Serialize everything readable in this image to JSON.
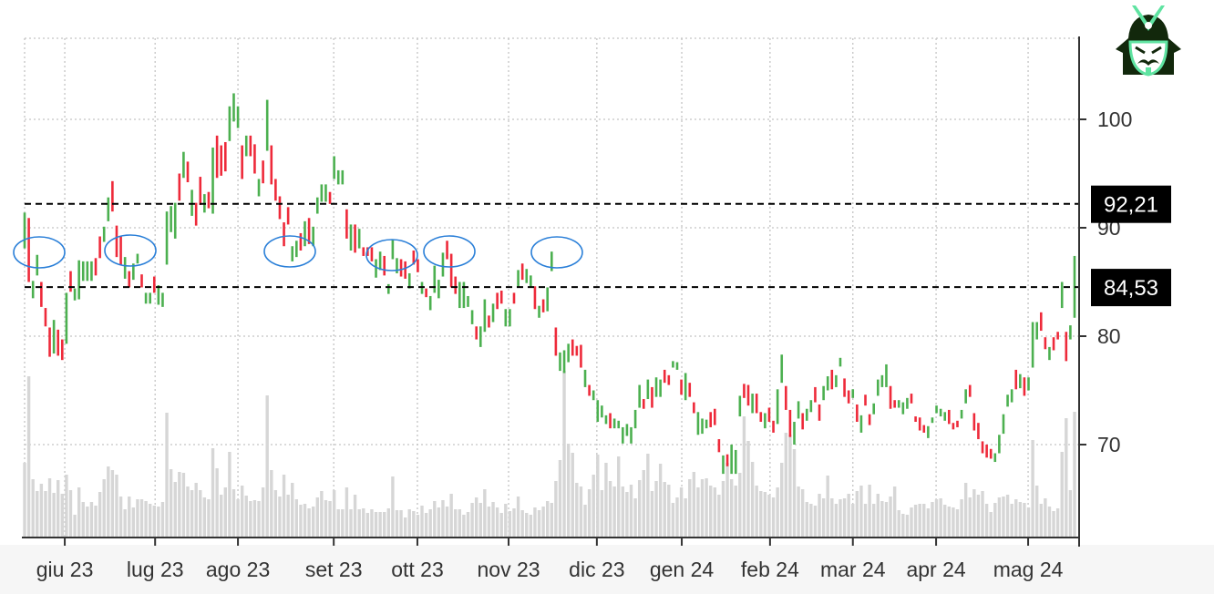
{
  "chart_data": {
    "type": "candlestick",
    "title": "",
    "y_axis": {
      "side": "right",
      "ticks": [
        70,
        80,
        90,
        100
      ],
      "range": [
        61.5,
        107.5
      ]
    },
    "x_axis": {
      "tick_labels": [
        "giu 23",
        "lug 23",
        "ago 23",
        "set 23",
        "ott 23",
        "nov 23",
        "dic 23",
        "gen 24",
        "feb 24",
        "mar 24",
        "apr 24",
        "mag 24"
      ]
    },
    "grid": true,
    "colors": {
      "up": "#4cb050",
      "down": "#ee2a3a",
      "volume": "#d6d6d6",
      "level_line": "#000000",
      "annotation": "#2a7fd8"
    },
    "levels": [
      {
        "value": 92.21,
        "label": "92,21"
      },
      {
        "value": 84.53,
        "label": "84,53"
      }
    ],
    "candles_open_close": [
      [
        88.1,
        91.4
      ],
      [
        90.9,
        85.0
      ],
      [
        83.5,
        85.1
      ],
      [
        85.6,
        87.5
      ],
      [
        85.0,
        82.7
      ],
      [
        82.6,
        80.9
      ],
      [
        80.8,
        78.1
      ],
      [
        78.4,
        81.5
      ],
      [
        80.6,
        78.2
      ],
      [
        79.7,
        77.8
      ],
      [
        79.3,
        84.0
      ],
      [
        86.0,
        84.1
      ],
      [
        83.3,
        84.4
      ],
      [
        83.4,
        87.0
      ],
      [
        85.1,
        86.9
      ],
      [
        85.1,
        86.9
      ],
      [
        85.1,
        86.9
      ],
      [
        87.2,
        85.6
      ],
      [
        89.2,
        87.2
      ],
      [
        88.7,
        90.1
      ],
      [
        90.6,
        92.8
      ],
      [
        94.3,
        91.5
      ],
      [
        90.2,
        87.3
      ],
      [
        89.2,
        86.6
      ],
      [
        85.3,
        87.3
      ],
      [
        86.0,
        84.5
      ],
      [
        85.2,
        86.7
      ],
      [
        86.7,
        87.6
      ],
      [
        85.7,
        84.5
      ],
      [
        83.0,
        84.0
      ],
      [
        83.0,
        84.0
      ],
      [
        85.5,
        84.0
      ],
      [
        82.9,
        84.7
      ],
      [
        82.7,
        84.0
      ],
      [
        86.6,
        91.5
      ],
      [
        89.6,
        92.0
      ],
      [
        89.0,
        92.3
      ],
      [
        95.0,
        92.5
      ],
      [
        94.6,
        97.0
      ],
      [
        96.1,
        94.2
      ],
      [
        91.1,
        93.5
      ],
      [
        92.3,
        90.2
      ],
      [
        94.7,
        92.1
      ],
      [
        91.4,
        93.1
      ],
      [
        93.3,
        91.8
      ],
      [
        91.3,
        97.4
      ],
      [
        98.5,
        94.6
      ],
      [
        97.6,
        94.8
      ],
      [
        97.9,
        95.2
      ],
      [
        98.0,
        101.2
      ],
      [
        99.8,
        102.4
      ],
      [
        99.2,
        101.2
      ],
      [
        97.6,
        94.5
      ],
      [
        96.6,
        98.5
      ],
      [
        98.5,
        96.6
      ],
      [
        97.7,
        95.0
      ],
      [
        92.9,
        94.5
      ],
      [
        96.2,
        94.1
      ],
      [
        97.1,
        101.8
      ],
      [
        97.6,
        94.0
      ],
      [
        94.5,
        92.5
      ],
      [
        92.9,
        90.8
      ],
      [
        90.5,
        88.3
      ],
      [
        91.9,
        90.3
      ],
      [
        86.9,
        88.3
      ],
      [
        87.3,
        88.8
      ],
      [
        89.5,
        87.9
      ],
      [
        88.3,
        90.6
      ],
      [
        90.9,
        88.5
      ],
      [
        88.3,
        90.1
      ],
      [
        91.3,
        92.8
      ],
      [
        92.4,
        94.0
      ],
      [
        92.4,
        94.0
      ],
      [
        93.3,
        92.2
      ],
      [
        94.5,
        96.6
      ],
      [
        94.0,
        95.3
      ],
      [
        94.0,
        95.3
      ],
      [
        91.7,
        89.0
      ],
      [
        87.9,
        90.3
      ],
      [
        90.3,
        87.7
      ],
      [
        88.1,
        89.9
      ],
      [
        88.2,
        87.4
      ],
      [
        88.2,
        87.4
      ],
      [
        88.2,
        86.9
      ],
      [
        85.4,
        87.1
      ],
      [
        86.1,
        87.8
      ],
      [
        87.4,
        85.6
      ],
      [
        83.9,
        84.8
      ],
      [
        87.1,
        88.9
      ],
      [
        85.8,
        87.2
      ],
      [
        87.1,
        85.5
      ],
      [
        86.9,
        85.3
      ],
      [
        84.4,
        85.8
      ],
      [
        87.9,
        86.6
      ],
      [
        87.1,
        85.9
      ],
      [
        83.9,
        85.0
      ],
      [
        84.4,
        83.6
      ],
      [
        82.4,
        83.7
      ],
      [
        84.0,
        86.5
      ],
      [
        83.5,
        85.2
      ],
      [
        85.5,
        87.7
      ],
      [
        88.8,
        87.1
      ],
      [
        87.6,
        84.5
      ],
      [
        85.5,
        83.9
      ],
      [
        82.6,
        85.0
      ],
      [
        82.6,
        85.0
      ],
      [
        82.7,
        83.7
      ],
      [
        81.1,
        82.4
      ],
      [
        80.9,
        79.7
      ],
      [
        79.0,
        80.9
      ],
      [
        80.4,
        83.4
      ],
      [
        81.9,
        80.8
      ],
      [
        81.3,
        83.0
      ],
      [
        84.0,
        82.5
      ],
      [
        84.2,
        83.0
      ],
      [
        80.9,
        82.5
      ],
      [
        80.9,
        82.5
      ],
      [
        84.0,
        83.0
      ],
      [
        84.5,
        86.1
      ],
      [
        86.7,
        85.2
      ],
      [
        84.9,
        86.2
      ],
      [
        84.5,
        85.6
      ],
      [
        84.6,
        82.5
      ],
      [
        81.7,
        82.8
      ],
      [
        83.4,
        82.2
      ],
      [
        82.3,
        84.5
      ],
      [
        86.0,
        87.8
      ],
      [
        80.8,
        78.2
      ],
      [
        76.8,
        78.5
      ],
      [
        76.6,
        78.7
      ],
      [
        77.6,
        79.3
      ],
      [
        79.7,
        78.2
      ],
      [
        79.1,
        78.2
      ],
      [
        79.2,
        77.1
      ],
      [
        75.3,
        76.9
      ],
      [
        75.5,
        74.5
      ],
      [
        74.1,
        75.0
      ],
      [
        72.1,
        74.1
      ],
      [
        72.5,
        73.6
      ],
      [
        71.9,
        72.7
      ],
      [
        72.9,
        71.5
      ],
      [
        71.5,
        72.4
      ],
      [
        71.5,
        72.2
      ],
      [
        70.1,
        71.6
      ],
      [
        70.8,
        71.9
      ],
      [
        70.1,
        71.6
      ],
      [
        71.5,
        73.2
      ],
      [
        73.4,
        75.5
      ],
      [
        74.2,
        73.3
      ],
      [
        74.2,
        76.0
      ],
      [
        75.3,
        73.4
      ],
      [
        74.4,
        76.2
      ],
      [
        74.4,
        76.0
      ],
      [
        76.9,
        75.7
      ],
      [
        76.4,
        75.5
      ],
      [
        77.1,
        77.7
      ],
      [
        76.9,
        77.6
      ],
      [
        76.0,
        74.6
      ],
      [
        74.1,
        76.6
      ],
      [
        75.7,
        74.4
      ],
      [
        73.9,
        72.9
      ],
      [
        70.9,
        73.0
      ],
      [
        71.0,
        72.4
      ],
      [
        71.5,
        72.3
      ],
      [
        73.0,
        71.6
      ],
      [
        73.3,
        71.8
      ],
      [
        70.5,
        69.3
      ],
      [
        67.3,
        69.0
      ],
      [
        69.1,
        68.0
      ],
      [
        67.3,
        70.0
      ],
      [
        67.3,
        69.5
      ],
      [
        72.6,
        74.5
      ],
      [
        75.6,
        74.3
      ],
      [
        75.5,
        73.6
      ],
      [
        72.9,
        74.7
      ],
      [
        74.7,
        72.9
      ],
      [
        73.0,
        72.1
      ],
      [
        71.5,
        72.9
      ],
      [
        73.4,
        72.1
      ],
      [
        72.2,
        71.1
      ],
      [
        71.9,
        75.1
      ],
      [
        75.7,
        78.3
      ],
      [
        75.4,
        73.2
      ],
      [
        73.2,
        70.7
      ],
      [
        70.0,
        72.1
      ],
      [
        72.4,
        74.0
      ],
      [
        72.9,
        71.4
      ],
      [
        72.2,
        73.3
      ],
      [
        73.0,
        74.1
      ],
      [
        75.3,
        73.9
      ],
      [
        73.7,
        72.2
      ],
      [
        74.1,
        75.4
      ],
      [
        75.0,
        76.3
      ],
      [
        76.9,
        75.1
      ],
      [
        75.3,
        76.4
      ],
      [
        77.2,
        78.0
      ],
      [
        76.1,
        74.4
      ],
      [
        75.0,
        73.8
      ],
      [
        74.3,
        75.1
      ],
      [
        73.7,
        72.1
      ],
      [
        71.1,
        72.7
      ],
      [
        74.6,
        73.6
      ],
      [
        72.8,
        71.8
      ],
      [
        72.8,
        73.8
      ],
      [
        74.5,
        76.0
      ],
      [
        75.3,
        76.4
      ],
      [
        75.3,
        77.4
      ],
      [
        75.4,
        73.3
      ],
      [
        74.1,
        73.4
      ],
      [
        73.4,
        74.1
      ],
      [
        72.8,
        73.9
      ],
      [
        73.3,
        74.3
      ],
      [
        74.7,
        73.8
      ],
      [
        72.6,
        72.1
      ],
      [
        72.5,
        71.3
      ],
      [
        71.8,
        71.1
      ],
      [
        70.6,
        71.7
      ],
      [
        72.0,
        72.5
      ],
      [
        72.9,
        73.6
      ],
      [
        72.6,
        73.3
      ],
      [
        72.2,
        73.0
      ],
      [
        73.2,
        71.9
      ],
      [
        72.0,
        71.4
      ],
      [
        72.2,
        71.6
      ],
      [
        72.4,
        73.2
      ],
      [
        73.8,
        75.1
      ],
      [
        75.5,
        74.4
      ],
      [
        72.9,
        71.3
      ],
      [
        72.0,
        70.5
      ],
      [
        70.3,
        69.2
      ],
      [
        70.0,
        68.8
      ],
      [
        69.6,
        68.7
      ],
      [
        68.4,
        69.2
      ],
      [
        69.2,
        70.9
      ],
      [
        71.0,
        72.8
      ],
      [
        73.5,
        74.6
      ],
      [
        73.9,
        75.1
      ],
      [
        76.9,
        75.1
      ],
      [
        75.2,
        76.5
      ],
      [
        76.2,
        74.5
      ],
      [
        75.0,
        76.2
      ],
      [
        77.1,
        81.3
      ],
      [
        79.7,
        81.3
      ],
      [
        82.2,
        80.5
      ],
      [
        79.9,
        78.8
      ],
      [
        77.8,
        79.0
      ],
      [
        79.9,
        78.7
      ],
      [
        80.4,
        79.7
      ],
      [
        82.6,
        85.0
      ],
      [
        80.4,
        77.7
      ],
      [
        79.7,
        81.0
      ],
      [
        81.7,
        87.4
      ]
    ],
    "volume_relative": [
      82,
      177,
      64,
      51,
      59,
      51,
      65,
      49,
      63,
      48,
      69,
      52,
      25,
      55,
      39,
      34,
      39,
      35,
      50,
      64,
      78,
      74,
      69,
      45,
      31,
      45,
      33,
      42,
      42,
      40,
      37,
      35,
      34,
      39,
      137,
      75,
      61,
      72,
      71,
      56,
      52,
      60,
      52,
      44,
      42,
      98,
      76,
      47,
      55,
      94,
      53,
      42,
      57,
      46,
      40,
      41,
      40,
      55,
      156,
      74,
      52,
      45,
      69,
      47,
      60,
      42,
      36,
      37,
      32,
      34,
      44,
      51,
      41,
      40,
      52,
      31,
      31,
      55,
      31,
      47,
      31,
      32,
      27,
      31,
      28,
      28,
      28,
      32,
      67,
      30,
      30,
      22,
      31,
      29,
      25,
      35,
      27,
      31,
      40,
      33,
      41,
      34,
      48,
      31,
      31,
      25,
      28,
      38,
      44,
      38,
      53,
      34,
      39,
      33,
      27,
      37,
      29,
      32,
      45,
      30,
      27,
      25,
      33,
      30,
      34,
      40,
      38,
      62,
      85,
      183,
      103,
      93,
      60,
      56,
      36,
      53,
      69,
      91,
      52,
      82,
      62,
      56,
      89,
      56,
      50,
      58,
      43,
      63,
      74,
      92,
      51,
      62,
      81,
      61,
      58,
      38,
      44,
      55,
      43,
      64,
      72,
      55,
      64,
      65,
      57,
      55,
      47,
      62,
      82,
      64,
      57,
      71,
      133,
      106,
      83,
      57,
      51,
      50,
      47,
      44,
      55,
      82,
      115,
      113,
      97,
      56,
      53,
      39,
      37,
      35,
      48,
      43,
      68,
      43,
      37,
      42,
      43,
      48,
      37,
      51,
      57,
      37,
      58,
      37,
      48,
      40,
      39,
      45,
      56,
      30,
      26,
      25,
      33,
      36,
      37,
      37,
      32,
      39,
      42,
      43,
      36,
      34,
      33,
      31,
      42,
      60,
      44,
      53,
      47,
      51,
      37,
      28,
      38,
      44,
      45,
      47,
      37,
      42,
      39,
      38,
      33,
      107,
      57,
      37,
      43,
      34,
      29,
      32,
      94,
      131,
      52,
      138
    ]
  },
  "logo": {
    "icon": "samurai-helmet-icon"
  }
}
